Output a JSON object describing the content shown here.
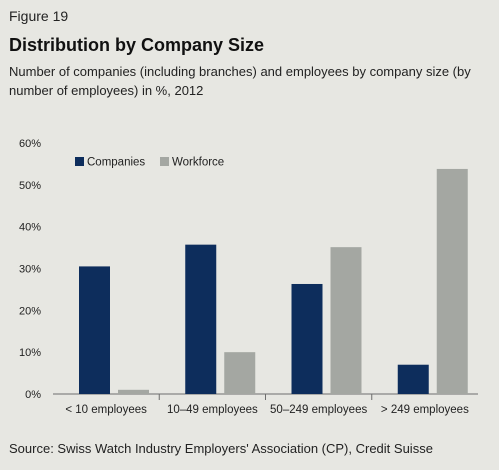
{
  "figure_label": "Figure 19",
  "chart_data": {
    "type": "bar",
    "title": "Distribution by Company Size",
    "subtitle": "Number of companies (including branches) and employees by company size (by number of employees) in %, 2012",
    "categories": [
      "< 10 employees",
      "10–49 employees",
      "50–249 employees",
      "> 249 employees"
    ],
    "series": [
      {
        "name": "Companies",
        "values": [
          30.5,
          35.7,
          26.3,
          7.0
        ],
        "color": "#0d2d5c"
      },
      {
        "name": "Workforce",
        "values": [
          1.0,
          10.0,
          35.1,
          53.8
        ],
        "color": "#a4a7a2"
      }
    ],
    "ylim": [
      0,
      60
    ],
    "yticks": [
      0,
      10,
      20,
      30,
      40,
      50,
      60
    ],
    "ytick_labels": [
      "0%",
      "10%",
      "20%",
      "30%",
      "40%",
      "50%",
      "60%"
    ],
    "xlabel": "",
    "ylabel": "",
    "grid": false,
    "legend_position": "top-left"
  },
  "source": "Source: Swiss Watch Industry Employers' Association (CP), Credit Suisse"
}
